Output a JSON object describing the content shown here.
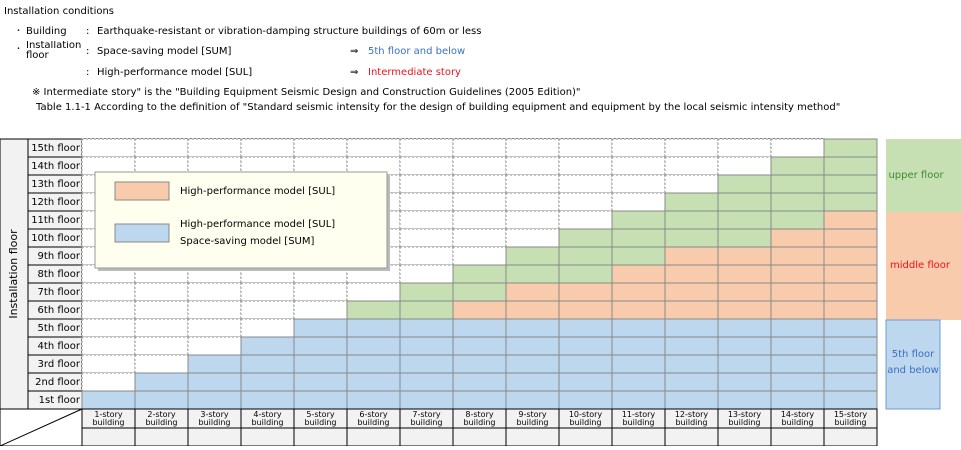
{
  "header": {
    "title": "Installation conditions",
    "conditions": [
      {
        "bullet": "･",
        "label": "Building",
        "colon": ":",
        "text": "Earthquake-resistant or vibration-damping structure buildings of 60m or less"
      },
      {
        "bullet": "･",
        "label": "Installation floor",
        "colon": ":",
        "text": "Space-saving model [SUM]",
        "arrow": "⇒",
        "result": "5th floor and below"
      },
      {
        "colon": ":",
        "text": "High-performance model [SUL]",
        "arrow": "⇒",
        "result": "Intermediate story"
      }
    ],
    "note": "※ Intermediate story\" is the \"Building Equipment Seismic Design and Construction Guidelines (2005 Edition)\"",
    "caption": "Table 1.1-1 According to the definition of \"Standard seismic intensity for the design of building equipment and equipment by the local seismic intensity method\""
  },
  "table": {
    "axis_label": "Installation floor",
    "floors": [
      "15th floor",
      "14th floor",
      "13th floor",
      "12th floor",
      "11th floor",
      "10th floor",
      "9th floor",
      "8th floor",
      "7th floor",
      "6th floor",
      "5th floor",
      "4th floor",
      "3rd floor",
      "2nd floor",
      "1st floor"
    ],
    "buildings": [
      "1-story building",
      "2-story building",
      "3-story building",
      "4-story building",
      "5-story building",
      "6-story building",
      "7-story building",
      "8-story building",
      "9-story building",
      "10-story building",
      "11-story building",
      "12-story building",
      "13-story building",
      "14-story building",
      "15-story building"
    ]
  },
  "legend": {
    "items": [
      {
        "text": "High-performance model [SUL]"
      },
      {
        "text": "High-performance model [SUL]",
        "text2": "Space-saving model [SUM]"
      }
    ]
  },
  "zones": [
    "upper floor",
    "middle floor",
    "5th floor and below"
  ]
}
